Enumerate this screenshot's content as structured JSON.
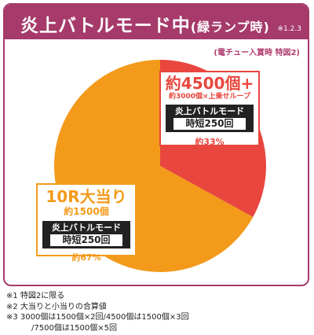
{
  "header": {
    "title": "炎上バトルモード中",
    "subtitle": "(緑ランプ時)",
    "note_marker": "※1.2.3"
  },
  "condition": "(電チュー入賞時 特図2)",
  "chart_data": {
    "type": "pie",
    "title": "炎上バトルモード中(緑ランプ時)",
    "slices": [
      {
        "name": "約4500個+",
        "detail": "約3000個×上乗せループ",
        "mode_name": "炎上バトルモード",
        "mode_time": "時短250回",
        "percent_label": "約33%",
        "value": 33,
        "color": "#e8463e"
      },
      {
        "name": "10R大当り",
        "detail": "約1500個",
        "mode_name": "炎上バトルモード",
        "mode_time": "時短250回",
        "percent_label": "約67%",
        "value": 67,
        "color": "#f39a1b"
      }
    ]
  },
  "notes": [
    "※1 特図2に限る",
    "※2 大当りと小当りの合算値",
    "※3 3000個は1500個×2回/4500個は1500個×3回",
    "/7500個は1500個×5回"
  ]
}
